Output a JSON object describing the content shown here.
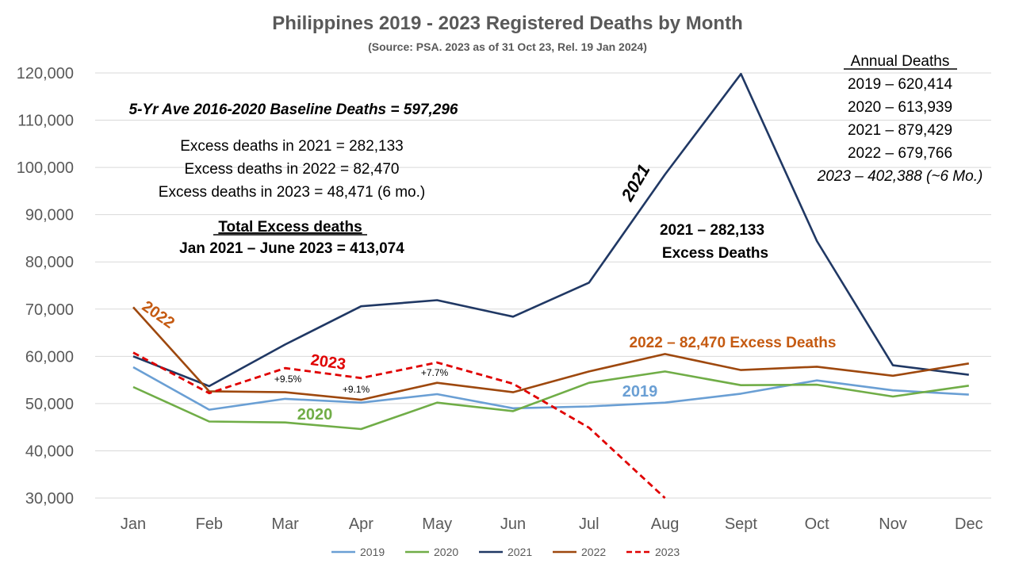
{
  "chart_data": {
    "type": "line",
    "title": "Philippines 2019 - 2023 Registered Deaths by Month",
    "subtitle": "(Source: PSA.  2023 as of 31 Oct 23, Rel. 19 Jan 2024)",
    "xlabel": "",
    "ylabel": "",
    "categories": [
      "Jan",
      "Feb",
      "Mar",
      "Apr",
      "May",
      "Jun",
      "Jul",
      "Aug",
      "Sept",
      "Oct",
      "Nov",
      "Dec"
    ],
    "ylim": [
      30000,
      120000
    ],
    "yticks": [
      30000,
      40000,
      50000,
      60000,
      70000,
      80000,
      90000,
      100000,
      110000,
      120000
    ],
    "ytick_labels": [
      "30,000",
      "40,000",
      "50,000",
      "60,000",
      "70,000",
      "80,000",
      "90,000",
      "100,000",
      "110,000",
      "120,000"
    ],
    "grid": "horizontal",
    "legend_position": "bottom",
    "series": [
      {
        "name": "2019",
        "color": "#6a9fd4",
        "dash": "solid",
        "values": [
          57700,
          48700,
          51000,
          50200,
          52000,
          49000,
          49400,
          50200,
          52100,
          54900,
          52800,
          51900
        ]
      },
      {
        "name": "2020",
        "color": "#70ad47",
        "dash": "solid",
        "values": [
          53500,
          46200,
          46000,
          44600,
          50200,
          48400,
          54400,
          56800,
          53900,
          54000,
          51500,
          53800
        ]
      },
      {
        "name": "2021",
        "color": "#203864",
        "dash": "solid",
        "values": [
          60000,
          53700,
          62500,
          70600,
          71900,
          68400,
          75600,
          98500,
          119800,
          84400,
          58100,
          56100
        ]
      },
      {
        "name": "2022",
        "color": "#9e480e",
        "dash": "solid",
        "values": [
          70400,
          52600,
          52400,
          50800,
          54400,
          52400,
          56800,
          60500,
          57100,
          57800,
          55900,
          58500
        ]
      },
      {
        "name": "2023",
        "color": "#e00000",
        "dash": "dashed",
        "values": [
          60800,
          52200,
          57500,
          55400,
          58700,
          54200,
          44900,
          30000,
          null,
          null,
          null,
          null
        ]
      }
    ],
    "annotations": {
      "baseline": "5-Yr Ave 2016-2020 Baseline Deaths = 597,296",
      "excess_2021": "Excess deaths in 2021 = 282,133",
      "excess_2022": "Excess deaths in 2022 = 82,470",
      "excess_2023": "Excess deaths in 2023 = 48,471 (6 mo.)",
      "total_title": "Total Excess deaths",
      "total_value": "Jan 2021 – June 2023 = 413,074",
      "annual_title": "Annual Deaths",
      "annual_2019": "2019 – 620,414",
      "annual_2020": "2020 – 613,939",
      "annual_2021": "2021 – 879,429",
      "annual_2022": "2022 – 679,766",
      "annual_2023": "2023 – 402,388 (~6 Mo.)",
      "label_2021_line": "2021",
      "label_2021_excess_1": "2021 – 282,133",
      "label_2021_excess_2": "Excess Deaths",
      "label_2022_excess": "2022 – 82,470 Excess Deaths",
      "label_2019": "2019",
      "label_2020": "2020",
      "label_2022": "2022",
      "label_2023": "2023",
      "pct_mar": "+9.5%",
      "pct_apr": "+9.1%",
      "pct_may": "+7.7%"
    }
  }
}
